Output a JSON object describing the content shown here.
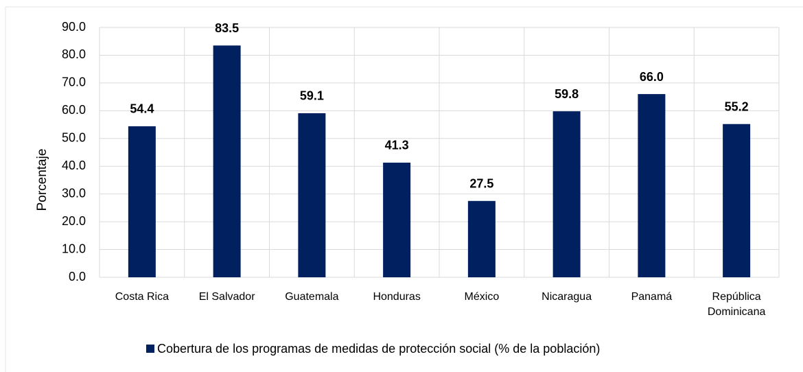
{
  "chart_data": {
    "type": "bar",
    "y_label": "Porcentaje",
    "categories": [
      "Costa Rica",
      "El Salvador",
      "Guatemala",
      "Honduras",
      "México",
      "Nicaragua",
      "Panamá",
      "República Dominicana"
    ],
    "series": [
      {
        "name": "Cobertura de los programas de medidas de protección social (% de la población)",
        "color": "#002060",
        "values": [
          54.4,
          83.5,
          59.1,
          41.3,
          27.5,
          59.8,
          66.0,
          55.2
        ],
        "value_labels": [
          "54.4",
          "83.5",
          "59.1",
          "41.3",
          "27.5",
          "59.8",
          "66.0",
          "55.2"
        ]
      }
    ],
    "ylim": [
      0,
      90
    ],
    "yticks": [
      {
        "value": 0,
        "label": "0.0"
      },
      {
        "value": 10,
        "label": "10.0"
      },
      {
        "value": 20,
        "label": "20.0"
      },
      {
        "value": 30,
        "label": "30.0"
      },
      {
        "value": 40,
        "label": "40.0"
      },
      {
        "value": 50,
        "label": "50.0"
      },
      {
        "value": 60,
        "label": "60.0"
      },
      {
        "value": 70,
        "label": "70.0"
      },
      {
        "value": 80,
        "label": "80.0"
      },
      {
        "value": 90,
        "label": "90.0"
      }
    ],
    "grid": true,
    "legend": "bottom"
  }
}
